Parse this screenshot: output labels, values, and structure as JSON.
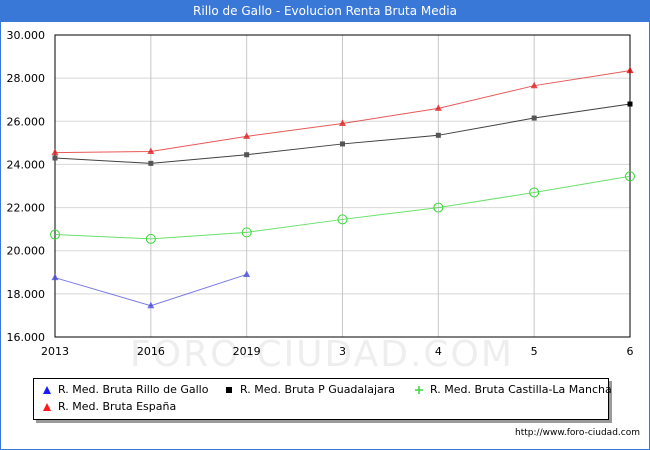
{
  "chart_data": {
    "type": "line",
    "title": "Rillo de Gallo - Evolucion Renta Bruta Media",
    "categories": [
      "2013",
      "2016",
      "2019",
      "3",
      "4",
      "5",
      "6"
    ],
    "ylim": [
      16000,
      30000
    ],
    "yticks": [
      "16.000",
      "18.000",
      "20.000",
      "22.000",
      "24.000",
      "26.000",
      "28.000",
      "30.000"
    ],
    "ytick_values": [
      16000,
      18000,
      20000,
      22000,
      24000,
      26000,
      28000,
      30000
    ],
    "grid": true,
    "legend_position": "bottom",
    "series": [
      {
        "name": "R. Med. Bruta Rillo de Gallo",
        "color": "#4a4adf",
        "marker": "triangle",
        "values": [
          18750,
          17450,
          18900,
          null,
          null,
          null,
          null
        ]
      },
      {
        "name": "R. Med. Bruta P Guadalajara",
        "color": "#000000",
        "marker": "square",
        "values": [
          24300,
          24050,
          24450,
          24950,
          25350,
          26150,
          26800
        ]
      },
      {
        "name": "R. Med. Bruta Castilla-La Mancha",
        "color": "#3ad63a",
        "marker": "circle",
        "values": [
          20750,
          20550,
          20850,
          21450,
          22000,
          22700,
          23450
        ]
      },
      {
        "name": "R. Med. Bruta España",
        "color": "#e02020",
        "marker": "triangle",
        "values": [
          24550,
          24600,
          25300,
          25900,
          26600,
          27650,
          28350
        ]
      }
    ]
  },
  "watermark": "FORO-CIUDAD.COM",
  "source": "http://www.foro-ciudad.com"
}
